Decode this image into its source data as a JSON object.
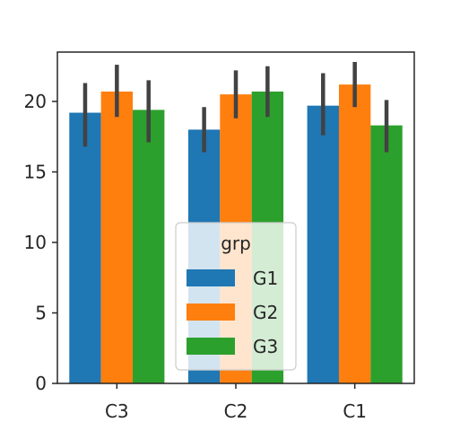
{
  "chart_data": {
    "type": "bar",
    "title": "",
    "xlabel": "",
    "ylabel": "",
    "categories": [
      "C3",
      "C2",
      "C1"
    ],
    "ylim": [
      0,
      23.5
    ],
    "yticks": [
      0,
      5,
      10,
      15,
      20
    ],
    "grid": false,
    "legend": {
      "title": "grp",
      "placement": "lower-center"
    },
    "error_bars": true,
    "series": [
      {
        "name": "G1",
        "color": "#1f77b4",
        "values": [
          19.2,
          18.0,
          19.7
        ],
        "err_low": [
          16.8,
          16.4,
          17.6
        ],
        "err_high": [
          21.3,
          19.6,
          22.0
        ]
      },
      {
        "name": "G2",
        "color": "#ff7f0e",
        "values": [
          20.7,
          20.5,
          21.2
        ],
        "err_low": [
          18.9,
          18.8,
          19.6
        ],
        "err_high": [
          22.6,
          22.2,
          22.8
        ]
      },
      {
        "name": "G3",
        "color": "#2ca02c",
        "values": [
          19.4,
          20.7,
          18.3
        ],
        "err_low": [
          17.1,
          18.9,
          16.4
        ],
        "err_high": [
          21.5,
          22.5,
          20.1
        ]
      }
    ]
  }
}
